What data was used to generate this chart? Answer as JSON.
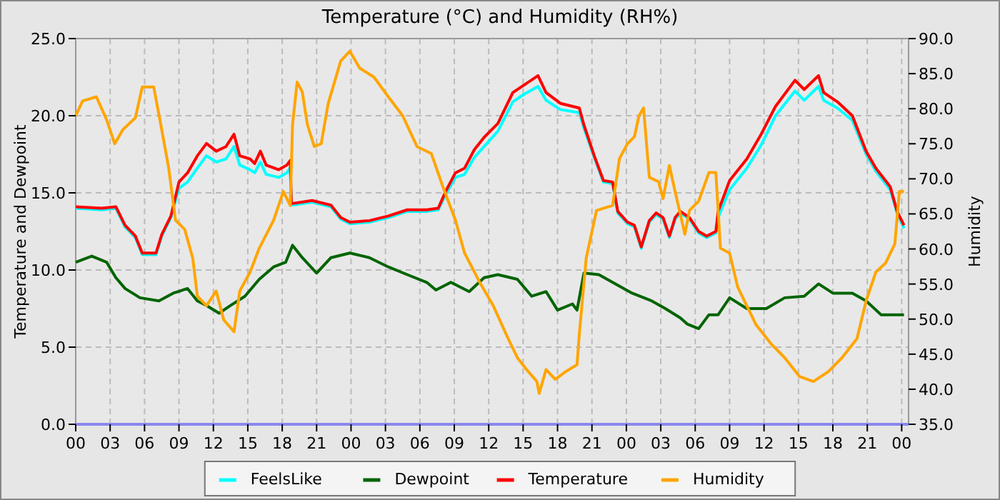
{
  "chart_data": {
    "type": "line",
    "title": "Temperature (°C) and Humidity (RH%)",
    "ylabel": "Temperature and Dewpoint",
    "y2label": "Humidity",
    "xlim": [
      0,
      72.6
    ],
    "xticks": [
      {
        "value": 0,
        "label": "00"
      },
      {
        "value": 3,
        "label": "03"
      },
      {
        "value": 6,
        "label": "06"
      },
      {
        "value": 9,
        "label": "09"
      },
      {
        "value": 12,
        "label": "12"
      },
      {
        "value": 15,
        "label": "15"
      },
      {
        "value": 18,
        "label": "18"
      },
      {
        "value": 21,
        "label": "21"
      },
      {
        "value": 24,
        "label": "00"
      },
      {
        "value": 27,
        "label": "03"
      },
      {
        "value": 30,
        "label": "06"
      },
      {
        "value": 33,
        "label": "09"
      },
      {
        "value": 36,
        "label": "12"
      },
      {
        "value": 39,
        "label": "15"
      },
      {
        "value": 42,
        "label": "18"
      },
      {
        "value": 45,
        "label": "21"
      },
      {
        "value": 48,
        "label": "00"
      },
      {
        "value": 51,
        "label": "03"
      },
      {
        "value": 54,
        "label": "06"
      },
      {
        "value": 57,
        "label": "09"
      },
      {
        "value": 60,
        "label": "12"
      },
      {
        "value": 63,
        "label": "15"
      },
      {
        "value": 66,
        "label": "18"
      },
      {
        "value": 69,
        "label": "21"
      },
      {
        "value": 72,
        "label": "00"
      }
    ],
    "ylim": [
      0,
      25
    ],
    "yticks": [
      {
        "value": 0,
        "label": "0.0"
      },
      {
        "value": 5,
        "label": "5.0"
      },
      {
        "value": 10,
        "label": "10.0"
      },
      {
        "value": 15,
        "label": "15.0"
      },
      {
        "value": 20,
        "label": "20.0"
      },
      {
        "value": 25,
        "label": "25.0"
      }
    ],
    "y2lim": [
      35,
      90
    ],
    "y2ticks": [
      {
        "value": 35,
        "label": "35.0"
      },
      {
        "value": 40,
        "label": "40.0"
      },
      {
        "value": 45,
        "label": "45.0"
      },
      {
        "value": 50,
        "label": "50.0"
      },
      {
        "value": 55,
        "label": "55.0"
      },
      {
        "value": 60,
        "label": "60.0"
      },
      {
        "value": 65,
        "label": "65.0"
      },
      {
        "value": 70,
        "label": "70.0"
      },
      {
        "value": 75,
        "label": "75.0"
      },
      {
        "value": 80,
        "label": "80.0"
      },
      {
        "value": 85,
        "label": "85.0"
      },
      {
        "value": 90,
        "label": "90.0"
      }
    ],
    "grid": true,
    "legend": "bottom",
    "marker": "none",
    "line_style": "solid",
    "series": [
      {
        "name": "FeelsLike",
        "color": "#00ffff",
        "x": [
          0,
          2.25,
          3.5,
          4.3,
          5.2,
          5.8,
          7,
          7.5,
          8.3,
          9,
          9.75,
          10.6,
          11.4,
          12.25,
          13.1,
          13.8,
          14.3,
          15.2,
          15.6,
          16.1,
          16.6,
          17.7,
          18.4,
          18.7,
          18.8,
          20.6,
          22.25,
          23.1,
          23.9,
          25.6,
          27.25,
          28.9,
          30.6,
          31.6,
          32.25,
          33.1,
          33.9,
          34.75,
          35.6,
          36.8,
          38.1,
          39.1,
          40.3,
          41,
          42.25,
          43.9,
          44.3,
          45.2,
          46,
          46.8,
          47.25,
          48.1,
          48.7,
          49.3,
          50,
          50.6,
          51.2,
          51.75,
          52.25,
          52.7,
          53.5,
          54.3,
          55,
          55.8,
          56,
          57,
          58.5,
          59.75,
          61,
          62.7,
          63.5,
          64.75,
          65.2,
          66.4,
          67.7,
          68.9,
          69.75,
          71,
          71.6,
          72.2
        ],
        "values": [
          14.0,
          13.9,
          14.0,
          12.8,
          12.1,
          11.0,
          11.0,
          12.2,
          13.4,
          15.3,
          15.7,
          16.6,
          17.4,
          17.0,
          17.2,
          18.0,
          16.8,
          16.5,
          16.3,
          17.0,
          16.2,
          16.0,
          16.3,
          16.6,
          14.2,
          14.4,
          14.1,
          13.3,
          13.0,
          13.1,
          13.4,
          13.8,
          13.8,
          13.9,
          14.9,
          16.0,
          16.2,
          17.3,
          18.0,
          19.0,
          20.9,
          21.4,
          21.9,
          21.0,
          20.4,
          20.2,
          19.2,
          17.3,
          15.7,
          15.6,
          13.7,
          13.0,
          12.8,
          11.4,
          13.1,
          13.6,
          13.3,
          12.1,
          13.3,
          13.7,
          13.3,
          12.4,
          12.1,
          12.4,
          13.4,
          15.2,
          16.6,
          18.1,
          20.0,
          21.6,
          21.0,
          21.9,
          21.0,
          20.5,
          19.7,
          17.5,
          16.4,
          15.2,
          13.7,
          12.7
        ]
      },
      {
        "name": "Dewpoint",
        "color": "#006400",
        "x": [
          0,
          1.4,
          2.7,
          3.5,
          4.3,
          5.6,
          7.25,
          8.5,
          9.75,
          10.6,
          11.4,
          12.5,
          13.5,
          14.75,
          16,
          17.25,
          18.3,
          18.9,
          19.75,
          21,
          22.25,
          23.9,
          25.6,
          27.25,
          28.9,
          30.6,
          31.4,
          32.7,
          34.3,
          35.6,
          36.8,
          38.5,
          39.75,
          41,
          42,
          43.3,
          43.7,
          44.3,
          45.6,
          46.8,
          48.5,
          50.2,
          51.4,
          52.7,
          53.3,
          54.3,
          55.2,
          56,
          57,
          58.5,
          60.2,
          61.8,
          63.5,
          64.75,
          66,
          67.7,
          68.9,
          70.2,
          72.2
        ],
        "values": [
          10.5,
          10.9,
          10.5,
          9.5,
          8.8,
          8.2,
          8.0,
          8.5,
          8.8,
          8.0,
          7.7,
          7.2,
          7.7,
          8.3,
          9.4,
          10.2,
          10.5,
          11.6,
          10.8,
          9.8,
          10.8,
          11.1,
          10.8,
          10.2,
          9.7,
          9.2,
          8.7,
          9.2,
          8.6,
          9.5,
          9.7,
          9.4,
          8.3,
          8.6,
          7.4,
          7.8,
          7.4,
          9.8,
          9.7,
          9.2,
          8.5,
          8.0,
          7.5,
          6.9,
          6.5,
          6.2,
          7.1,
          7.1,
          8.2,
          7.5,
          7.5,
          8.2,
          8.3,
          9.1,
          8.5,
          8.5,
          8.0,
          7.1,
          7.1
        ]
      },
      {
        "name": "Temperature",
        "color": "#ff0000",
        "x": [
          0,
          2.25,
          3.5,
          4.3,
          5.2,
          5.8,
          7,
          7.5,
          8.3,
          9,
          9.75,
          10.6,
          11.4,
          12.25,
          13.1,
          13.8,
          14.3,
          15.2,
          15.6,
          16.1,
          16.6,
          17.7,
          18.4,
          18.7,
          18.8,
          20.6,
          22.25,
          23.1,
          23.9,
          25.6,
          27.25,
          28.9,
          30.6,
          31.6,
          32.25,
          33.1,
          33.9,
          34.75,
          35.6,
          36.8,
          38.1,
          39.1,
          40.3,
          41,
          42.25,
          43.9,
          44.3,
          45.2,
          46,
          46.8,
          47.25,
          48.1,
          48.7,
          49.3,
          50,
          50.6,
          51.2,
          51.75,
          52.25,
          52.7,
          53.5,
          54.3,
          55,
          55.8,
          56,
          57,
          58.5,
          59.75,
          61,
          62.7,
          63.5,
          64.75,
          65.2,
          66.4,
          67.7,
          68.9,
          69.75,
          71,
          71.6,
          72.2
        ],
        "values": [
          14.1,
          14.0,
          14.1,
          12.9,
          12.2,
          11.1,
          11.1,
          12.3,
          13.5,
          15.7,
          16.3,
          17.4,
          18.2,
          17.7,
          18.0,
          18.8,
          17.4,
          17.2,
          16.9,
          17.7,
          16.8,
          16.5,
          16.8,
          17.1,
          14.3,
          14.5,
          14.2,
          13.4,
          13.1,
          13.2,
          13.5,
          13.9,
          13.9,
          14.0,
          15.1,
          16.3,
          16.6,
          17.8,
          18.6,
          19.5,
          21.5,
          22.0,
          22.6,
          21.5,
          20.8,
          20.5,
          19.4,
          17.4,
          15.8,
          15.7,
          13.8,
          13.1,
          12.9,
          11.5,
          13.2,
          13.7,
          13.4,
          12.2,
          13.4,
          13.8,
          13.4,
          12.5,
          12.2,
          12.5,
          13.8,
          15.8,
          17.2,
          18.8,
          20.6,
          22.3,
          21.7,
          22.6,
          21.5,
          20.9,
          20.0,
          17.7,
          16.6,
          15.4,
          13.8,
          12.9
        ]
      },
      {
        "name": "Humidity",
        "color": "#ffa500",
        "axis": "y2",
        "x": [
          0,
          0.6,
          1.8,
          2.7,
          3.4,
          4.1,
          5.2,
          5.8,
          6.8,
          7.5,
          8.1,
          8.7,
          9.5,
          10.2,
          10.6,
          11.4,
          12.25,
          12.9,
          13.8,
          14.3,
          15.2,
          16,
          17.25,
          18.1,
          18.7,
          18.9,
          19.3,
          19.75,
          20.2,
          20.8,
          21.4,
          22,
          23.1,
          23.9,
          24.75,
          26,
          27.25,
          28.5,
          29.75,
          31,
          32,
          33.1,
          33.9,
          35.2,
          36.4,
          37.7,
          38.5,
          39.3,
          40.2,
          40.4,
          41,
          41.8,
          42.7,
          43.7,
          43.9,
          44.5,
          45.4,
          46.8,
          47.4,
          48.1,
          48.7,
          49.1,
          49.5,
          50,
          50.8,
          51.2,
          51.75,
          52.25,
          53.1,
          53.5,
          54.3,
          55.2,
          55.8,
          56.2,
          57,
          57.7,
          58.5,
          59.3,
          60.6,
          61.8,
          63.1,
          64.3,
          65.6,
          66.8,
          68.1,
          68.9,
          69.75,
          70.6,
          71.4,
          71.8,
          72.2
        ],
        "values": [
          79.0,
          81.1,
          81.7,
          78.4,
          75.0,
          77.0,
          78.7,
          83.1,
          83.1,
          77.0,
          71.6,
          64.1,
          62.8,
          58.7,
          53.3,
          51.9,
          54.0,
          49.9,
          48.2,
          54.0,
          56.7,
          60.1,
          64.1,
          68.2,
          66.2,
          77.7,
          83.8,
          82.4,
          77.7,
          74.6,
          75.0,
          80.7,
          86.8,
          88.2,
          85.8,
          84.5,
          81.7,
          79.0,
          74.6,
          73.6,
          68.9,
          64.1,
          59.4,
          55.3,
          51.9,
          47.2,
          44.5,
          42.8,
          41.1,
          39.4,
          42.8,
          41.4,
          42.5,
          43.5,
          47.9,
          58.7,
          65.5,
          66.2,
          72.9,
          75.0,
          76.0,
          79.0,
          80.1,
          70.2,
          69.6,
          67.2,
          71.9,
          68.2,
          62.1,
          65.5,
          66.8,
          70.9,
          70.9,
          60.1,
          59.4,
          54.6,
          51.9,
          49.2,
          46.5,
          44.5,
          41.8,
          41.1,
          42.5,
          44.5,
          47.2,
          52.6,
          56.7,
          58.0,
          60.7,
          68.2,
          68.2
        ]
      }
    ]
  }
}
